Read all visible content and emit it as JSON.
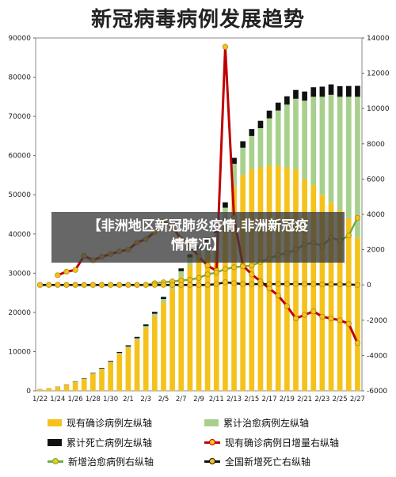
{
  "title": "新冠病毒病例发展趋势",
  "overlay": {
    "line1": "【非洲地区新冠肺炎疫情,非洲新冠疫",
    "line2": "情情况】"
  },
  "legend": [
    {
      "label": "现有确诊病例左纵轴",
      "kind": "bar",
      "color": "#f5c21b"
    },
    {
      "label": "累计治愈病例左纵轴",
      "kind": "bar",
      "color": "#a8d08d"
    },
    {
      "label": "累计死亡病例左纵轴",
      "kind": "bar",
      "color": "#111111"
    },
    {
      "label": "现有确诊病例日增量右纵轴",
      "kind": "line",
      "color": "#c00000",
      "marker": "#f5c21b"
    },
    {
      "label": "新增治愈病例右纵轴",
      "kind": "line",
      "color": "#70ad47",
      "marker": "#f5c21b"
    },
    {
      "label": "全国新增死亡右纵轴",
      "kind": "line",
      "color": "#111111",
      "marker": "#f5c21b"
    }
  ],
  "chart_data": {
    "type": "bar",
    "title": "新冠病毒病例发展趋势",
    "x": [
      "1/22",
      "1/23",
      "1/24",
      "1/25",
      "1/26",
      "1/27",
      "1/28",
      "1/29",
      "1/30",
      "1/31",
      "2/1",
      "2/2",
      "2/3",
      "2/4",
      "2/5",
      "2/6",
      "2/7",
      "2/8",
      "2/9",
      "2/10",
      "2/11",
      "2/12",
      "2/13",
      "2/14",
      "2/15",
      "2/16",
      "2/17",
      "2/18",
      "2/19",
      "2/20",
      "2/21",
      "2/22",
      "2/23",
      "2/24",
      "2/25",
      "2/26",
      "2/27"
    ],
    "x_tick_labels": [
      "1/22",
      "1/24",
      "1/26",
      "1/28",
      "1/30",
      "2/1",
      "2/3",
      "2/5",
      "2/7",
      "2/9",
      "2/11",
      "2/13",
      "2/15",
      "2/17",
      "2/19",
      "2/21",
      "2/23",
      "2/25",
      "2/27"
    ],
    "ylim_left": [
      0,
      90000
    ],
    "left_ticks": [
      "0",
      "10000",
      "20000",
      "30000",
      "40000",
      "50000",
      "60000",
      "70000",
      "80000",
      "90000"
    ],
    "ylim_right": [
      -6000,
      14000
    ],
    "right_ticks": [
      "-6000",
      "-4000",
      "-2000",
      "0",
      "2000",
      "4000",
      "6000",
      "8000",
      "10000",
      "12000",
      "14000"
    ],
    "grid": false,
    "stacked_series": [
      {
        "name": "现有确诊病例左纵轴",
        "axis": "left",
        "color": "#f5c21b",
        "values": [
          400,
          600,
          1000,
          1500,
          2300,
          3000,
          4300,
          5500,
          7200,
          9400,
          11000,
          13000,
          16000,
          19000,
          22500,
          26000,
          29000,
          32000,
          33500,
          35000,
          36500,
          42000,
          52000,
          55000,
          56500,
          57000,
          57500,
          57500,
          57000,
          56500,
          54000,
          52500,
          50000,
          48000,
          46000,
          44000,
          39000
        ]
      },
      {
        "name": "累计治愈病例左纵轴",
        "axis": "left",
        "color": "#a8d08d",
        "values": [
          30,
          30,
          40,
          50,
          60,
          100,
          120,
          150,
          200,
          250,
          300,
          400,
          500,
          650,
          900,
          1200,
          1500,
          2000,
          2600,
          3000,
          3800,
          4700,
          5900,
          7000,
          8500,
          10000,
          12000,
          14000,
          16000,
          18000,
          20000,
          22500,
          25000,
          27500,
          29000,
          31000,
          36000
        ]
      },
      {
        "name": "累计死亡病例左纵轴",
        "axis": "left",
        "color": "#111111",
        "values": [
          17,
          25,
          40,
          55,
          80,
          105,
          130,
          170,
          210,
          255,
          300,
          360,
          425,
          490,
          565,
          640,
          720,
          810,
          910,
          1010,
          1110,
          1370,
          1520,
          1660,
          1770,
          1870,
          1980,
          2010,
          2120,
          2240,
          2340,
          2440,
          2590,
          2660,
          2710,
          2750,
          2790
        ]
      }
    ],
    "line_series": [
      {
        "name": "现有确诊病例日增量右纵轴",
        "axis": "right",
        "color": "#c00000",
        "values": [
          null,
          null,
          550,
          750,
          850,
          1650,
          1400,
          1600,
          1750,
          1900,
          2000,
          2400,
          2600,
          3000,
          3600,
          3300,
          2600,
          2200,
          1600,
          1100,
          800,
          13500,
          3800,
          1100,
          600,
          200,
          -200,
          -600,
          -1200,
          -1900,
          -1700,
          -1500,
          -1800,
          -1900,
          -2000,
          -2200,
          -3300
        ]
      },
      {
        "name": "新增治愈病例右纵轴",
        "axis": "right",
        "color": "#70ad47",
        "values": [
          0,
          0,
          0,
          0,
          0,
          0,
          0,
          0,
          0,
          0,
          0,
          0,
          0,
          100,
          150,
          200,
          250,
          300,
          400,
          600,
          700,
          900,
          1000,
          1050,
          1100,
          1300,
          1500,
          1700,
          1800,
          2000,
          2300,
          2400,
          2200,
          2700,
          2500,
          2800,
          3800
        ]
      },
      {
        "name": "全国新增死亡右纵轴",
        "axis": "right",
        "color": "#111111",
        "values": [
          0,
          0,
          0,
          0,
          0,
          0,
          0,
          0,
          0,
          0,
          0,
          0,
          0,
          0,
          0,
          0,
          0,
          0,
          0,
          0,
          50,
          150,
          100,
          50,
          50,
          50,
          50,
          50,
          50,
          50,
          50,
          50,
          30,
          30,
          30,
          30,
          0
        ]
      }
    ]
  }
}
